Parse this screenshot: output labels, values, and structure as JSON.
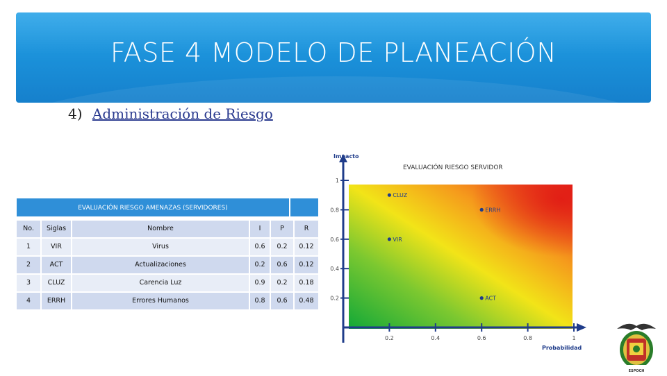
{
  "slide": {
    "title": "FASE 4 MODELO DE PLANEACIÓN",
    "subtitle_number": "4)",
    "subtitle_link": "Administración de Riesgo"
  },
  "table": {
    "title": "EVALUACIÓN RIESGO AMENAZAS (SERVIDORES)",
    "headers": [
      "No.",
      "Siglas",
      "Nombre",
      "I",
      "P",
      "R"
    ],
    "rows": [
      {
        "no": "1",
        "siglas": "VIR",
        "nombre": "Virus",
        "i": "0.6",
        "p": "0.2",
        "r": "0.12"
      },
      {
        "no": "2",
        "siglas": "ACT",
        "nombre": "Actualizaciones",
        "i": "0.2",
        "p": "0.6",
        "r": "0.12"
      },
      {
        "no": "3",
        "siglas": "CLUZ",
        "nombre": "Carencia Luz",
        "i": "0.9",
        "p": "0.2",
        "r": "0.18"
      },
      {
        "no": "4",
        "siglas": "ERRH",
        "nombre": "Errores Humanos",
        "i": "0.8",
        "p": "0.6",
        "r": "0.48"
      }
    ]
  },
  "chart_data": {
    "type": "scatter",
    "title": "EVALUACIÓN RIESGO SERVIDOR",
    "xlabel": "Probabilidad",
    "ylabel": "Impacto",
    "xlim": [
      0,
      1
    ],
    "ylim": [
      0,
      1
    ],
    "x_ticks": [
      "0.2",
      "0.4",
      "0.6",
      "0.8",
      "1"
    ],
    "y_ticks": [
      "0.2",
      "0.4",
      "0.6",
      "0.8",
      "1"
    ],
    "background": "gradient green (low) to red (high)",
    "points": [
      {
        "label": "VIR",
        "x": 0.2,
        "y": 0.6
      },
      {
        "label": "ACT",
        "x": 0.6,
        "y": 0.2
      },
      {
        "label": "CLUZ",
        "x": 0.2,
        "y": 0.9
      },
      {
        "label": "ERRH",
        "x": 0.6,
        "y": 0.8
      }
    ]
  },
  "logo": {
    "caption": "ESPOCH",
    "name": "crest-logo"
  },
  "colors": {
    "banner": "#1a8fd8",
    "table_header": "#2f8fd8",
    "row_dark": "#cfd9ee",
    "row_light": "#e8edf7",
    "axis": "#1f3c8a"
  }
}
